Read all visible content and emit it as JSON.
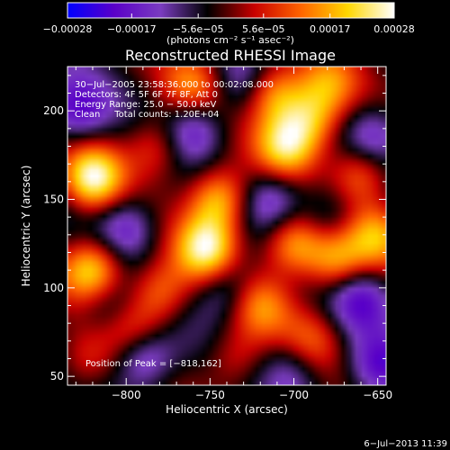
{
  "chart_data": {
    "type": "heatmap",
    "title": "Reconstructed RHESSI Image",
    "xlabel": "Heliocentric X (arcsec)",
    "ylabel": "Heliocentric Y (arcsec)",
    "xlim": [
      -835,
      -645
    ],
    "ylim": [
      45,
      225
    ],
    "x_ticks": [
      {
        "value": -800,
        "label": "−800"
      },
      {
        "value": -750,
        "label": "−750"
      },
      {
        "value": -700,
        "label": "−700"
      },
      {
        "value": -650,
        "label": "−650"
      }
    ],
    "y_ticks": [
      {
        "value": 50,
        "label": "50"
      },
      {
        "value": 100,
        "label": "100"
      },
      {
        "value": 150,
        "label": "150"
      },
      {
        "value": 200,
        "label": "200"
      }
    ],
    "colorbar": {
      "colormap": [
        "#0000ff",
        "#5a00c8",
        "#7a3cc0",
        "#000000",
        "#c80000",
        "#ff6400",
        "#ffd700",
        "#ffffff"
      ],
      "range": [
        -0.00028,
        0.00028
      ],
      "tick_values": [
        -0.00028,
        -0.00017,
        -5.6e-05,
        5.6e-05,
        0.00017,
        0.00028
      ],
      "tick_labels": [
        "−0.00028",
        "−0.00017",
        "−5.6e−05",
        "5.6e−05",
        "0.00017",
        "0.00028"
      ],
      "unit_label": "(photons cm⁻² s⁻¹ asec⁻²)"
    },
    "annotations": [
      "30−Jul−2005 23:58:36.000 to 00:02:08.000",
      "Detectors: 4F 5F 6F 7F 8F, Att 0",
      "Energy Range: 25.0 − 50.0 keV",
      "Clean     Total counts: 1.20E+04"
    ],
    "peak_label": "Position of Peak = [−818,162]",
    "peak": {
      "x": -818,
      "y": 162
    },
    "image_blobs": [
      {
        "x": -820,
        "y": 162,
        "v": 1.0
      },
      {
        "x": -820,
        "y": 110,
        "v": 0.95
      },
      {
        "x": -752,
        "y": 122,
        "v": 0.95
      },
      {
        "x": -745,
        "y": 150,
        "v": 0.85
      },
      {
        "x": -712,
        "y": 210,
        "v": 0.75
      },
      {
        "x": -705,
        "y": 180,
        "v": 0.8
      },
      {
        "x": -690,
        "y": 195,
        "v": 0.7
      },
      {
        "x": -700,
        "y": 125,
        "v": 0.8
      },
      {
        "x": -675,
        "y": 115,
        "v": 0.7
      },
      {
        "x": -650,
        "y": 130,
        "v": 0.65
      },
      {
        "x": -660,
        "y": 165,
        "v": 0.65
      },
      {
        "x": -680,
        "y": 215,
        "v": 0.55
      },
      {
        "x": -780,
        "y": 98,
        "v": 0.6
      },
      {
        "x": -795,
        "y": 75,
        "v": 0.55
      },
      {
        "x": -760,
        "y": 215,
        "v": 0.55
      },
      {
        "x": -782,
        "y": 180,
        "v": 0.5
      },
      {
        "x": -720,
        "y": 90,
        "v": 0.55
      },
      {
        "x": -690,
        "y": 70,
        "v": 0.45
      },
      {
        "x": -735,
        "y": 60,
        "v": 0.4
      },
      {
        "x": -825,
        "y": 58,
        "v": 0.35
      },
      {
        "x": -800,
        "y": 135,
        "v": -0.5
      },
      {
        "x": -760,
        "y": 190,
        "v": -0.55
      },
      {
        "x": -830,
        "y": 200,
        "v": -0.6
      },
      {
        "x": -790,
        "y": 62,
        "v": -0.75
      },
      {
        "x": -660,
        "y": 95,
        "v": -0.55
      },
      {
        "x": -650,
        "y": 55,
        "v": -0.55
      },
      {
        "x": -712,
        "y": 150,
        "v": -0.5
      },
      {
        "x": -652,
        "y": 185,
        "v": -0.5
      },
      {
        "x": -740,
        "y": 100,
        "v": -0.45
      },
      {
        "x": -700,
        "y": 55,
        "v": -0.4
      },
      {
        "x": -732,
        "y": 215,
        "v": -0.35
      },
      {
        "x": -680,
        "y": 140,
        "v": -0.4
      },
      {
        "x": -812,
        "y": 90,
        "v": -0.35
      }
    ]
  },
  "footer": {
    "timestamp": "6−Jul−2013 11:39"
  }
}
